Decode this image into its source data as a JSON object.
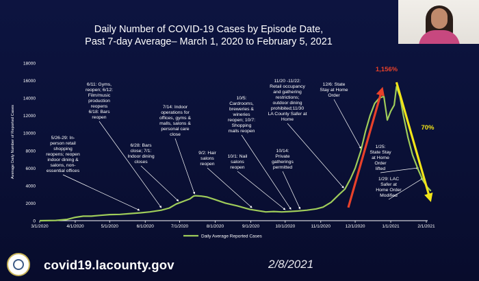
{
  "slide": {
    "title_line1": "Daily Number of COVID-19 Cases by Episode Date,",
    "title_line2": "Past 7-day Average– March 1, 2020 to February 5, 2021",
    "footer_url": "covid19.lacounty.gov",
    "footer_date": "2/8/2021",
    "logo_icon": "county-seal-icon",
    "webcam_icon": "presenter-webcam-icon"
  },
  "colors": {
    "background": "#0b1034",
    "line": "#9fcc5a",
    "increase_arrow": "#e8412a",
    "decrease_arrow": "#f2e418",
    "increase_text": "#e8412a",
    "decrease_text": "#f2e418"
  },
  "chart_data": {
    "type": "line",
    "title": "Daily Number of COVID-19 Cases by Episode Date, Past 7-day Average– March 1, 2020 to February 5, 2021",
    "ylabel": "Average Daily Number of Reported Cases",
    "ylim": [
      0,
      18000
    ],
    "yticks": [
      "0",
      "2000",
      "4000",
      "6000",
      "8000",
      "10000",
      "12000",
      "14000",
      "16000",
      "18000"
    ],
    "xticks": [
      {
        "date": "2020-03-01",
        "label": "3/1/2020"
      },
      {
        "date": "2020-04-01",
        "label": "4/1/2020"
      },
      {
        "date": "2020-05-01",
        "label": "5/1/2020"
      },
      {
        "date": "2020-06-01",
        "label": "6/1/2020"
      },
      {
        "date": "2020-07-01",
        "label": "7/1/2020"
      },
      {
        "date": "2020-08-01",
        "label": "8/1/2020"
      },
      {
        "date": "2020-09-01",
        "label": "9/1/2020"
      },
      {
        "date": "2020-10-01",
        "label": "10/1/2020"
      },
      {
        "date": "2020-11-01",
        "label": "11/1/2020"
      },
      {
        "date": "2020-12-01",
        "label": "12/1/2020"
      },
      {
        "date": "2021-01-01",
        "label": "1/1/2021"
      },
      {
        "date": "2021-02-01",
        "label": "2/1/2021"
      }
    ],
    "grid": false,
    "legend_position": "bottom-center",
    "series": [
      {
        "name": "Daily Average Reported Cases",
        "points": [
          [
            "2020-03-01",
            0
          ],
          [
            "2020-03-15",
            30
          ],
          [
            "2020-03-25",
            150
          ],
          [
            "2020-04-01",
            380
          ],
          [
            "2020-04-08",
            520
          ],
          [
            "2020-04-15",
            520
          ],
          [
            "2020-04-22",
            600
          ],
          [
            "2020-05-01",
            700
          ],
          [
            "2020-05-10",
            720
          ],
          [
            "2020-05-20",
            820
          ],
          [
            "2020-05-28",
            900
          ],
          [
            "2020-06-05",
            1000
          ],
          [
            "2020-06-15",
            1200
          ],
          [
            "2020-06-22",
            1450
          ],
          [
            "2020-06-28",
            1900
          ],
          [
            "2020-07-02",
            2100
          ],
          [
            "2020-07-06",
            2300
          ],
          [
            "2020-07-10",
            2500
          ],
          [
            "2020-07-13",
            2800
          ],
          [
            "2020-07-15",
            2850
          ],
          [
            "2020-07-20",
            2800
          ],
          [
            "2020-07-25",
            2700
          ],
          [
            "2020-08-01",
            2400
          ],
          [
            "2020-08-10",
            2000
          ],
          [
            "2020-08-20",
            1700
          ],
          [
            "2020-08-31",
            1300
          ],
          [
            "2020-09-07",
            1150
          ],
          [
            "2020-09-14",
            1000
          ],
          [
            "2020-09-21",
            1050
          ],
          [
            "2020-09-28",
            1000
          ],
          [
            "2020-10-05",
            1050
          ],
          [
            "2020-10-12",
            1100
          ],
          [
            "2020-10-20",
            1200
          ],
          [
            "2020-10-28",
            1350
          ],
          [
            "2020-11-03",
            1550
          ],
          [
            "2020-11-10",
            2100
          ],
          [
            "2020-11-17",
            3000
          ],
          [
            "2020-11-22",
            3600
          ],
          [
            "2020-11-27",
            4800
          ],
          [
            "2020-12-01",
            6000
          ],
          [
            "2020-12-06",
            8000
          ],
          [
            "2020-12-10",
            10200
          ],
          [
            "2020-12-14",
            12000
          ],
          [
            "2020-12-18",
            13400
          ],
          [
            "2020-12-22",
            14000
          ],
          [
            "2020-12-26",
            14200
          ],
          [
            "2020-12-29",
            11500
          ],
          [
            "2021-01-01",
            12500
          ],
          [
            "2021-01-04",
            13200
          ],
          [
            "2021-01-06",
            15300
          ],
          [
            "2021-01-09",
            14200
          ],
          [
            "2021-01-12",
            12000
          ],
          [
            "2021-01-16",
            9500
          ],
          [
            "2021-01-20",
            7500
          ],
          [
            "2021-01-25",
            5800
          ],
          [
            "2021-01-29",
            4600
          ],
          [
            "2021-02-02",
            3800
          ],
          [
            "2021-02-05",
            3400
          ]
        ]
      }
    ],
    "annotations": [
      {
        "lines": [
          "5/26-29: In-",
          "person retail",
          "shopping",
          "reopens; reopen",
          "indoor dining &",
          "salons, non-",
          "essential offices"
        ],
        "point": [
          "2020-05-27",
          950
        ]
      },
      {
        "lines": [
          "6/11: Gyms,",
          "reopen; 6/12:",
          "Film/music",
          "production",
          "reopens",
          "6/18: Bars",
          "reopen"
        ],
        "point": [
          "2020-06-15",
          1250
        ]
      },
      {
        "lines": [
          "6/28: Bars",
          "close; 7/1:",
          "Indoor dining",
          "closes"
        ],
        "point": [
          "2020-06-30",
          2000
        ]
      },
      {
        "lines": [
          "7/14: Indoor",
          "operations for",
          "offices, gyms &",
          "malls, salons &",
          "personal care",
          "close"
        ],
        "point": [
          "2020-07-14",
          2820
        ]
      },
      {
        "lines": [
          "9/2: Hair",
          "salons",
          "reopen"
        ],
        "point": [
          "2020-09-02",
          1250
        ]
      },
      {
        "lines": [
          "10/5:",
          "Cardrooms,",
          "breweries &",
          "wineries",
          "reopen; 10/7:",
          "Shopping",
          "malls reopen"
        ],
        "point": [
          "2020-10-06",
          1060
        ]
      },
      {
        "lines": [
          "10/1: Nail",
          "salons",
          "reopen"
        ],
        "point": [
          "2020-10-01",
          1020
        ]
      },
      {
        "lines": [
          "11/20 -11/22:",
          "Retail occupancy",
          "and gathering",
          "restrictions;",
          "outdoor dining",
          "prohibited;11/30",
          "LA County Safer at",
          "Home"
        ],
        "point": [
          "2020-11-21",
          3500
        ]
      },
      {
        "lines": [
          "10/14:",
          "Private",
          "gatherings",
          "permitted"
        ],
        "point": [
          "2020-10-14",
          1100
        ]
      },
      {
        "lines": [
          "12/6: State",
          "Stay at Home",
          "Order"
        ],
        "point": [
          "2020-12-06",
          8000
        ]
      },
      {
        "lines": [
          "1/25:",
          "State Stay",
          "at Home",
          "Order",
          "lifted"
        ],
        "point": [
          "2021-01-25",
          5800
        ]
      },
      {
        "lines": [
          "1/29: LAC",
          "Safer at",
          "Home Order",
          "Modified"
        ],
        "point": [
          "2021-01-29",
          4600
        ]
      }
    ],
    "callouts": [
      {
        "text": "1,156%",
        "direction": "increase",
        "from": [
          "2020-11-25",
          1500
        ],
        "to": [
          "2020-12-24",
          14800
        ]
      },
      {
        "text": "70%",
        "direction": "decrease",
        "from": [
          "2021-01-06",
          15800
        ],
        "to": [
          "2021-02-04",
          2600
        ]
      }
    ]
  }
}
